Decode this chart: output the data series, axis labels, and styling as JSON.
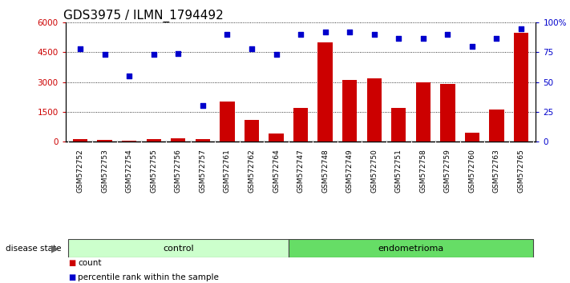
{
  "title": "GDS3975 / ILMN_1794492",
  "samples": [
    "GSM572752",
    "GSM572753",
    "GSM572754",
    "GSM572755",
    "GSM572756",
    "GSM572757",
    "GSM572761",
    "GSM572762",
    "GSM572764",
    "GSM572747",
    "GSM572748",
    "GSM572749",
    "GSM572750",
    "GSM572751",
    "GSM572758",
    "GSM572759",
    "GSM572760",
    "GSM572763",
    "GSM572765"
  ],
  "counts": [
    120,
    80,
    30,
    130,
    150,
    130,
    2000,
    1100,
    400,
    1700,
    5000,
    3100,
    3200,
    1700,
    3000,
    2900,
    450,
    1600,
    5500
  ],
  "percentiles": [
    78,
    73,
    55,
    73,
    74,
    30,
    90,
    78,
    73,
    90,
    92,
    92,
    90,
    87,
    87,
    90,
    80,
    87,
    95
  ],
  "groups": [
    "control",
    "control",
    "control",
    "control",
    "control",
    "control",
    "control",
    "control",
    "control",
    "endometrioma",
    "endometrioma",
    "endometrioma",
    "endometrioma",
    "endometrioma",
    "endometrioma",
    "endometrioma",
    "endometrioma",
    "endometrioma",
    "endometrioma"
  ],
  "bar_color": "#cc0000",
  "dot_color": "#0000cc",
  "background_color": "#ffffff",
  "tick_bg_color": "#c8c8c8",
  "control_color": "#ccffcc",
  "endometrioma_color": "#66dd66",
  "ylim_left": [
    0,
    6000
  ],
  "ylim_right": [
    0,
    100
  ],
  "yticks_left": [
    0,
    1500,
    3000,
    4500,
    6000
  ],
  "yticks_right": [
    0,
    25,
    50,
    75,
    100
  ],
  "title_fontsize": 11,
  "tick_fontsize": 7.5,
  "legend_count_label": "count",
  "legend_percentile_label": "percentile rank within the sample",
  "disease_state_label": "disease state",
  "control_label": "control",
  "endometrioma_label": "endometrioma"
}
